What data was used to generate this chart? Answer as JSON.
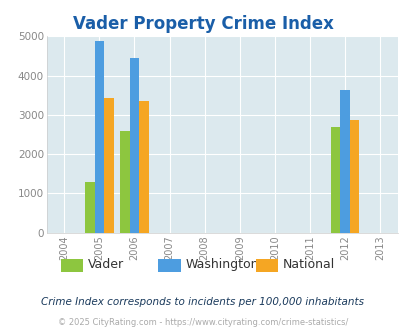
{
  "title": "Vader Property Crime Index",
  "title_color": "#1a5ea8",
  "xlim": [
    2003.5,
    2013.5
  ],
  "ylim": [
    0,
    5000
  ],
  "yticks": [
    0,
    1000,
    2000,
    3000,
    4000,
    5000
  ],
  "xtick_years": [
    2004,
    2005,
    2006,
    2007,
    2008,
    2009,
    2010,
    2011,
    2012,
    2013
  ],
  "bar_width": 0.27,
  "data": {
    "2005": {
      "vader": 1300,
      "washington": 4880,
      "national": 3420
    },
    "2006": {
      "vader": 2580,
      "washington": 4460,
      "national": 3340
    },
    "2012": {
      "vader": 2700,
      "washington": 3640,
      "national": 2860
    }
  },
  "colors": {
    "vader": "#8dc63f",
    "washington": "#4d9de0",
    "national": "#f5a623"
  },
  "legend_labels": [
    "Vader",
    "Washington",
    "National"
  ],
  "plot_bg": "#dce9ee",
  "outer_bg": "#ffffff",
  "grid_color": "#ffffff",
  "tick_color": "#888888",
  "footnote1": "Crime Index corresponds to incidents per 100,000 inhabitants",
  "footnote2": "© 2025 CityRating.com - https://www.cityrating.com/crime-statistics/",
  "footnote1_color": "#1a3a5c",
  "footnote2_color": "#aaaaaa",
  "legend_text_color": "#333333"
}
